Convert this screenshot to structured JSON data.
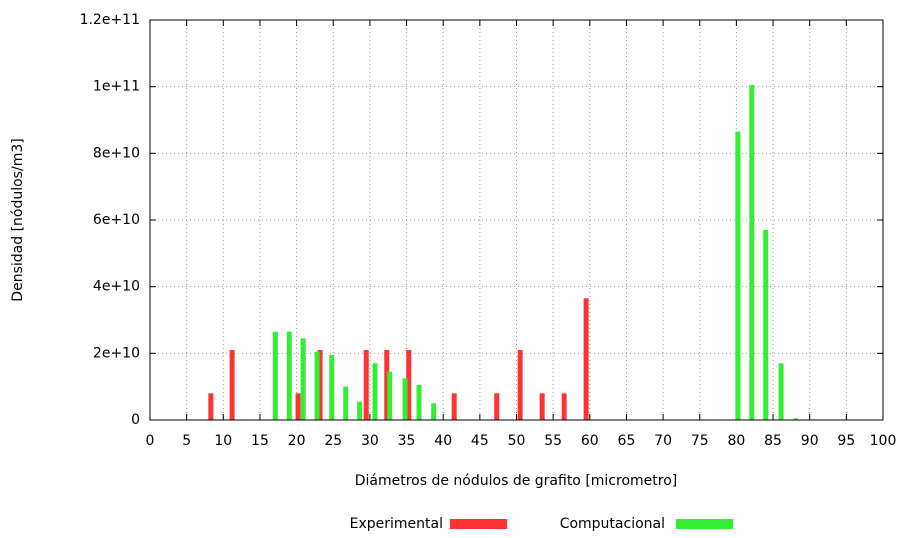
{
  "chart_data": {
    "type": "bar",
    "x_label": "Diámetros de nódulos de grafito [micrometro]",
    "y_label": "Densidad [nódulos/m3]",
    "xlim": [
      0,
      100
    ],
    "xticks": [
      0,
      5,
      10,
      15,
      20,
      25,
      30,
      35,
      40,
      45,
      50,
      55,
      60,
      65,
      70,
      75,
      80,
      85,
      90,
      95,
      100
    ],
    "ylim": [
      0,
      120000000000
    ],
    "yticks": [
      0,
      {
        "value": 20000000000,
        "label": "2e+10"
      },
      {
        "value": 40000000000,
        "label": "4e+10"
      },
      {
        "value": 60000000000,
        "label": "6e+10"
      },
      {
        "value": 80000000000,
        "label": "8e+10"
      },
      {
        "value": 100000000000,
        "label": "1e+11"
      },
      {
        "value": 120000000000,
        "label": "1.2e+11"
      }
    ],
    "grid": true,
    "legend": "bottom",
    "series": [
      {
        "name": "Experimental",
        "color": "#ff3333",
        "x": [
          8.3,
          11.2,
          20.2,
          23.2,
          29.5,
          32.3,
          35.3,
          41.5,
          47.3,
          50.5,
          53.5,
          56.5,
          59.5
        ],
        "values": [
          8000000000,
          21000000000,
          8000000000,
          21000000000,
          21000000000,
          21000000000,
          21000000000,
          8000000000,
          8000000000,
          21000000000,
          8000000000,
          8000000000,
          36500000000
        ]
      },
      {
        "name": "Computacional",
        "color": "#33ee33",
        "x": [
          17.1,
          19.0,
          20.9,
          22.8,
          24.8,
          26.7,
          28.6,
          30.7,
          32.7,
          34.8,
          36.7,
          38.7,
          80.2,
          82.1,
          84.0,
          86.1,
          88.1
        ],
        "values": [
          26500000000,
          26500000000,
          24500000000,
          20500000000,
          19500000000,
          10000000000,
          5500000000,
          17000000000,
          14500000000,
          12500000000,
          10500000000,
          5000000000,
          86500000000,
          100500000000,
          57000000000,
          17000000000,
          500000000
        ]
      }
    ]
  }
}
